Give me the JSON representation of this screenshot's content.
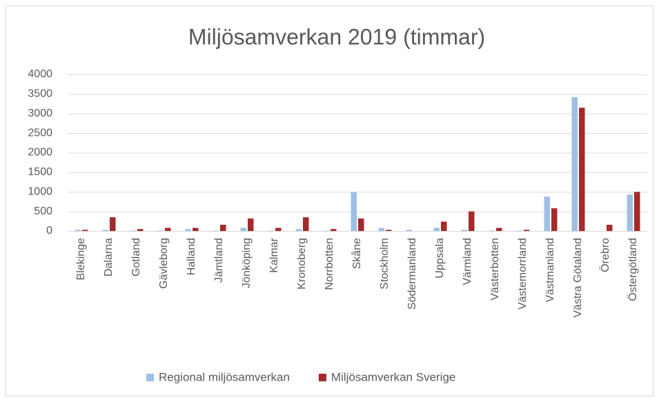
{
  "chart_data": {
    "type": "bar",
    "title": "Miljösamverkan 2019 (timmar)",
    "categories": [
      "Blekinge",
      "Dalarna",
      "Gotland",
      "Gävleborg",
      "Halland",
      "Jämtland",
      "Jönköping",
      "Kalmar",
      "Kronoberg",
      "Norrbotten",
      "Skåne",
      "Stockholm",
      "Södermanland",
      "Uppsala",
      "Värmland",
      "Västerbotten",
      "Västemorrland",
      "Västmanland",
      "Västra Götaland",
      "Örebro",
      "Östergötland"
    ],
    "series": [
      {
        "name": "Regional miljösamverkan",
        "color": "#9fc0e4",
        "values": [
          30,
          30,
          10,
          10,
          50,
          10,
          80,
          10,
          50,
          10,
          1000,
          80,
          30,
          80,
          30,
          10,
          10,
          880,
          3420,
          0,
          930
        ]
      },
      {
        "name": "Miljösamverkan Sverige",
        "color": "#a52a2a",
        "values": [
          30,
          350,
          50,
          80,
          80,
          160,
          320,
          80,
          350,
          50,
          320,
          30,
          0,
          240,
          500,
          80,
          30,
          580,
          3150,
          160,
          1000
        ]
      }
    ],
    "ylim": [
      0,
      4000
    ],
    "yticks": [
      0,
      500,
      1000,
      1500,
      2000,
      2500,
      3000,
      3500,
      4000
    ],
    "grid": true,
    "legend": "bottom"
  }
}
